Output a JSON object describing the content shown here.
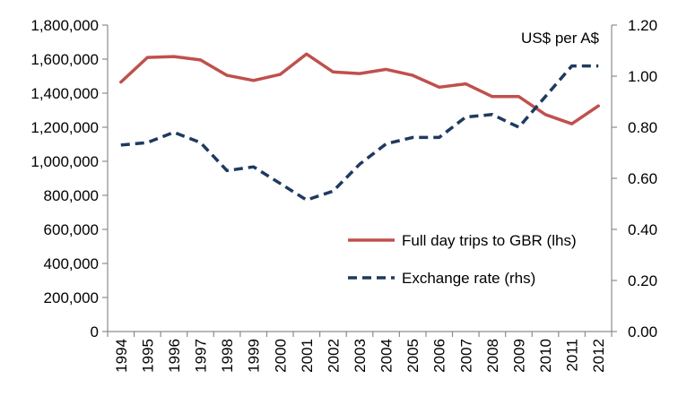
{
  "chart_data": {
    "type": "line",
    "title": "",
    "x": [
      "1994",
      "1995",
      "1996",
      "1997",
      "1998",
      "1999",
      "2000",
      "2001",
      "2002",
      "2003",
      "2004",
      "2005",
      "2006",
      "2007",
      "2008",
      "2009",
      "2010",
      "2011",
      "2012"
    ],
    "series": [
      {
        "name": "Full day trips to GBR (lhs)",
        "axis": "left",
        "color": "#c0504d",
        "style": "solid",
        "values": [
          1465000,
          1610000,
          1615000,
          1595000,
          1505000,
          1475000,
          1510000,
          1630000,
          1525000,
          1515000,
          1540000,
          1505000,
          1435000,
          1455000,
          1380000,
          1380000,
          1275000,
          1220000,
          1325000
        ]
      },
      {
        "name": "Exchange rate (rhs)",
        "axis": "right",
        "color": "#1f3a5f",
        "style": "dashed",
        "values": [
          0.73,
          0.74,
          0.78,
          0.74,
          0.63,
          0.645,
          0.58,
          0.515,
          0.55,
          0.655,
          0.735,
          0.76,
          0.76,
          0.84,
          0.85,
          0.8,
          0.92,
          1.04,
          1.04
        ]
      }
    ],
    "left_axis": {
      "min": 0,
      "max": 1800000,
      "step": 200000,
      "tick_labels": [
        "0",
        "200,000",
        "400,000",
        "600,000",
        "800,000",
        "1,000,000",
        "1,200,000",
        "1,400,000",
        "1,600,000",
        "1,800,000"
      ]
    },
    "right_axis": {
      "min": 0,
      "max": 1.2,
      "step": 0.2,
      "label": "US$ per A$",
      "tick_labels": [
        "0.00",
        "0.20",
        "0.40",
        "0.60",
        "0.80",
        "1.00",
        "1.20"
      ]
    },
    "legend": {
      "position": "center-right",
      "entries": [
        "Full day trips to GBR (lhs)",
        "Exchange rate (rhs)"
      ]
    },
    "grid": false
  }
}
